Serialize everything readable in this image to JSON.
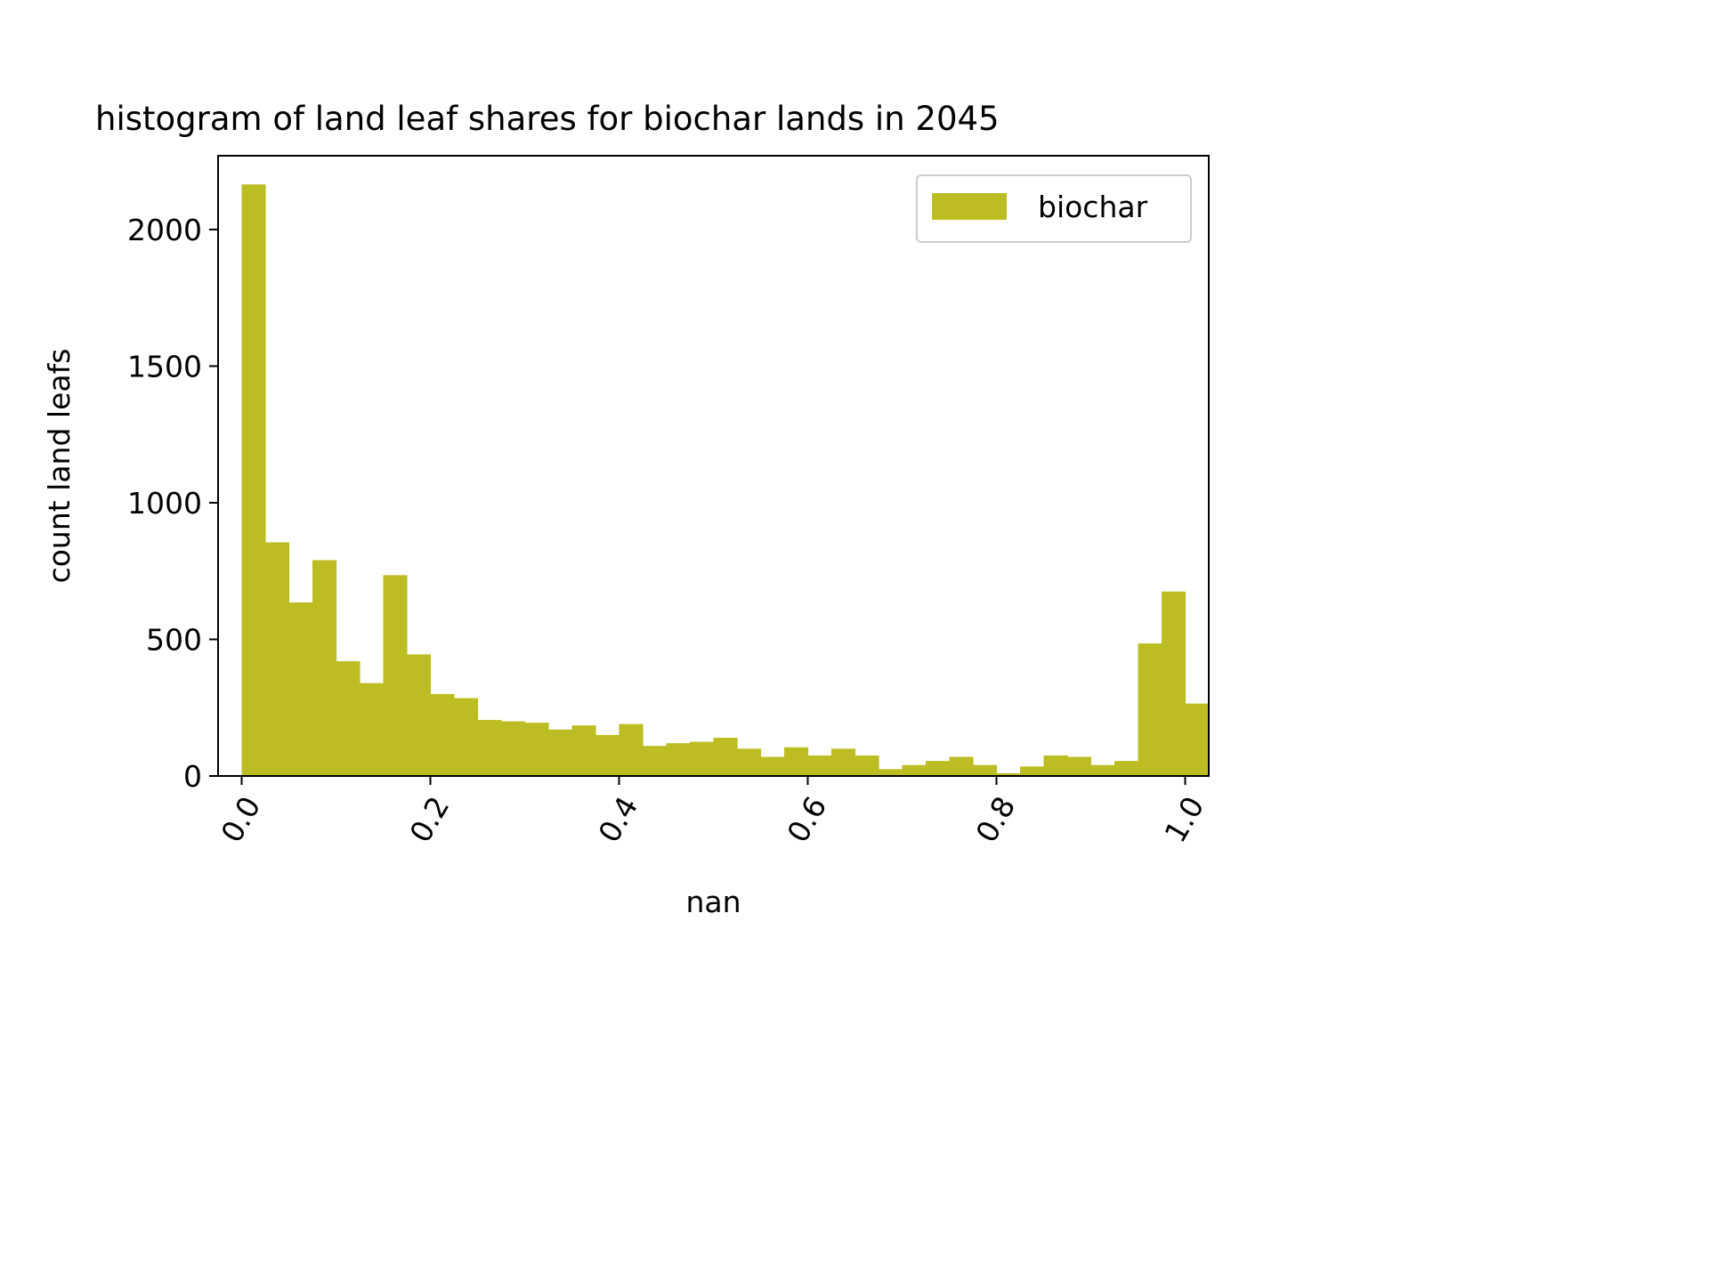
{
  "chart_data": {
    "type": "bar",
    "title": "histogram of land leaf shares for biochar lands in 2045",
    "xlabel": "nan",
    "ylabel": "count land leafs",
    "xlim": [
      -0.025,
      1.025
    ],
    "ylim": [
      0,
      2270
    ],
    "xticks": [
      0.0,
      0.2,
      0.4,
      0.6,
      0.8,
      1.0
    ],
    "xtick_labels": [
      "0.0",
      "0.2",
      "0.4",
      "0.6",
      "0.8",
      "1.0"
    ],
    "yticks": [
      0,
      500,
      1000,
      1500,
      2000
    ],
    "ytick_labels": [
      "0",
      "500",
      "1000",
      "1500",
      "2000"
    ],
    "grid": false,
    "legend_position": "upper right",
    "series": [
      {
        "name": "biochar",
        "color": "#bcbd22",
        "bin_edges": [
          0.0,
          0.025,
          0.05,
          0.075,
          0.1,
          0.125,
          0.15,
          0.175,
          0.2,
          0.225,
          0.25,
          0.275,
          0.3,
          0.325,
          0.35,
          0.375,
          0.4,
          0.425,
          0.45,
          0.475,
          0.5,
          0.525,
          0.55,
          0.575,
          0.6,
          0.625,
          0.65,
          0.675,
          0.7,
          0.725,
          0.75,
          0.775,
          0.8,
          0.825,
          0.85,
          0.875,
          0.9,
          0.925,
          0.95,
          0.975,
          1.0,
          1.025
        ],
        "values": [
          2165,
          855,
          635,
          790,
          420,
          340,
          735,
          445,
          300,
          285,
          205,
          200,
          195,
          170,
          185,
          150,
          190,
          110,
          120,
          125,
          140,
          100,
          70,
          105,
          75,
          100,
          75,
          25,
          40,
          55,
          70,
          40,
          10,
          35,
          75,
          70,
          40,
          55,
          485,
          675,
          265
        ]
      }
    ]
  }
}
